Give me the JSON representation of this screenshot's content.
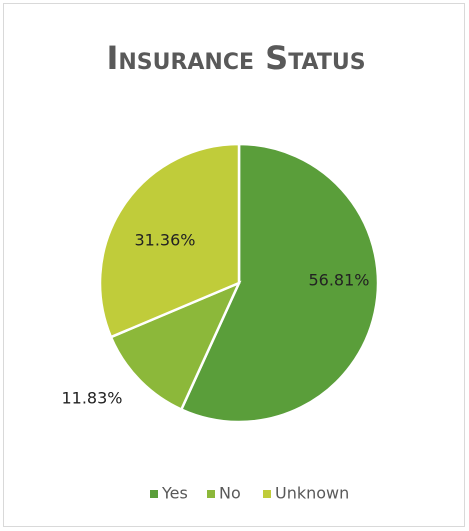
{
  "chart_data": {
    "type": "pie",
    "title": "Insurance Status",
    "categories": [
      "Yes",
      "No",
      "Unknown"
    ],
    "values": [
      56.81,
      11.83,
      31.36
    ],
    "value_labels": [
      "56.81%",
      "11.83%",
      "31.36%"
    ],
    "colors": [
      "#5a9e3a",
      "#8cb83a",
      "#c0cc3a"
    ],
    "legend": "bottom"
  }
}
